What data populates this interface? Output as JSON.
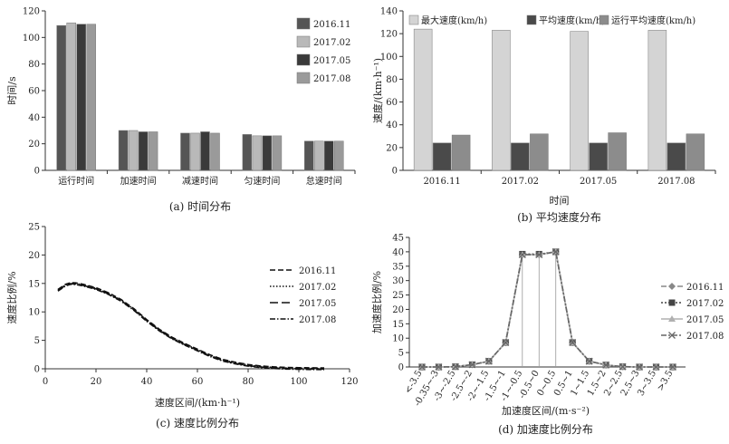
{
  "chart_data": [
    {
      "id": "a",
      "type": "bar",
      "caption": "(a) 时间分布",
      "ylabel": "时间/s",
      "xlabel": "",
      "ylim": [
        0,
        120
      ],
      "yticks": [
        0,
        20,
        40,
        60,
        80,
        100,
        120
      ],
      "categories": [
        "运行时间",
        "加速时间",
        "减速时间",
        "匀速时间",
        "怠速时间"
      ],
      "series": [
        {
          "name": "2016.11",
          "values": [
            109,
            30,
            28,
            27,
            22
          ],
          "color": "#555555"
        },
        {
          "name": "2017.02",
          "values": [
            111,
            30,
            28,
            26,
            22
          ],
          "color": "#b9b9b9"
        },
        {
          "name": "2017.05",
          "values": [
            110,
            29,
            29,
            26,
            22
          ],
          "color": "#3a3a3a"
        },
        {
          "name": "2017.08",
          "values": [
            110,
            29,
            28,
            26,
            22
          ],
          "color": "#9a9a9a"
        }
      ]
    },
    {
      "id": "b",
      "type": "bar",
      "caption": "(b) 平均速度分布",
      "ylabel": "速度/(km·h⁻¹)",
      "xlabel": "时间",
      "ylim": [
        0,
        140
      ],
      "yticks": [
        0,
        20,
        40,
        60,
        80,
        100,
        120,
        140
      ],
      "categories": [
        "2016.11",
        "2017.02",
        "2017.05",
        "2017.08"
      ],
      "series": [
        {
          "name": "最大速度(km/h)",
          "values": [
            124,
            123,
            122,
            123
          ],
          "color": "#d4d4d4"
        },
        {
          "name": "平均速度(km/h)",
          "values": [
            24,
            24,
            24,
            24
          ],
          "color": "#4a4a4a"
        },
        {
          "name": "运行平均速度(km/h)",
          "values": [
            31,
            32,
            33,
            32
          ],
          "color": "#8c8c8c"
        }
      ]
    },
    {
      "id": "c",
      "type": "line",
      "caption": "(c) 速度比例分布",
      "ylabel": "速度比例/%",
      "xlabel": "速度区间/(km·h⁻¹)",
      "xlim": [
        0,
        120
      ],
      "ylim": [
        0,
        25
      ],
      "xticks": [
        0,
        20,
        40,
        60,
        80,
        100,
        120
      ],
      "yticks": [
        0,
        5,
        10,
        15,
        20,
        25
      ],
      "x": [
        5,
        8,
        10,
        12,
        15,
        20,
        25,
        30,
        35,
        40,
        45,
        50,
        55,
        60,
        65,
        70,
        75,
        80,
        85,
        90,
        95,
        100,
        105,
        110
      ],
      "series": [
        {
          "name": "2016.11",
          "dash": "6,3",
          "values": [
            13.8,
            14.7,
            15.0,
            14.95,
            14.7,
            14.1,
            13.2,
            12.0,
            10.4,
            8.5,
            6.8,
            5.4,
            4.3,
            3.3,
            2.3,
            1.5,
            1.0,
            0.6,
            0.35,
            0.2,
            0.1,
            0.05,
            0.02,
            0.0
          ]
        },
        {
          "name": "2017.02",
          "dash": "1.5,2",
          "values": [
            13.8,
            14.7,
            15.0,
            14.95,
            14.7,
            14.1,
            13.2,
            12.0,
            10.4,
            8.5,
            6.8,
            5.4,
            4.3,
            3.3,
            2.3,
            1.5,
            1.0,
            0.6,
            0.35,
            0.2,
            0.1,
            0.05,
            0.02,
            0.0
          ]
        },
        {
          "name": "2017.05",
          "dash": "9,4",
          "values": [
            13.8,
            14.7,
            15.0,
            14.95,
            14.7,
            14.1,
            13.2,
            12.0,
            10.4,
            8.5,
            6.8,
            5.4,
            4.3,
            3.3,
            2.3,
            1.5,
            1.0,
            0.6,
            0.35,
            0.2,
            0.1,
            0.05,
            0.02,
            0.0
          ]
        },
        {
          "name": "2017.08",
          "dash": "6,2,1.5,2",
          "values": [
            13.8,
            14.7,
            15.0,
            14.95,
            14.7,
            14.1,
            13.2,
            12.0,
            10.4,
            8.5,
            6.8,
            5.4,
            4.3,
            3.3,
            2.3,
            1.5,
            1.0,
            0.6,
            0.35,
            0.2,
            0.1,
            0.05,
            0.02,
            0.0
          ]
        }
      ]
    },
    {
      "id": "d",
      "type": "line",
      "caption": "(d) 加速度比例分布",
      "ylabel": "加速度比例/%",
      "xlabel": "加速度区间/(m·s⁻²)",
      "ylim": [
        0,
        45
      ],
      "yticks": [
        0,
        5,
        10,
        15,
        20,
        25,
        30,
        35,
        40,
        45
      ],
      "categories": [
        "<-3.5",
        "-0.35~-3",
        "-3~-2.5",
        "-2.5~-2",
        "-2~-1.5",
        "-1.5~-1",
        "-1~-0.5",
        "-0.5~0",
        "0~0.5",
        "0.5~1",
        "1~1.5",
        "1.5~2",
        "2~2.5",
        "2.5~3",
        "3~3.5",
        ">3.5"
      ],
      "series": [
        {
          "name": "2016.11",
          "marker": "diamond",
          "color": "#888888",
          "values": [
            0,
            0,
            0.1,
            0.8,
            2.0,
            8.5,
            39.0,
            39.0,
            40.0,
            8.5,
            2.0,
            0.7,
            0.1,
            0,
            0,
            0
          ]
        },
        {
          "name": "2017.02",
          "marker": "square",
          "color": "#444444",
          "values": [
            0,
            0,
            0.1,
            0.8,
            2.0,
            8.5,
            39.2,
            39.2,
            40.0,
            8.5,
            2.0,
            0.7,
            0.1,
            0,
            0,
            0
          ]
        },
        {
          "name": "2017.05",
          "marker": "triangle",
          "color": "#b0b0b0",
          "values": [
            0,
            0,
            0.1,
            0.8,
            2.0,
            8.5,
            39.0,
            39.0,
            40.0,
            8.5,
            2.0,
            0.7,
            0.1,
            0,
            0,
            0
          ]
        },
        {
          "name": "2017.08",
          "marker": "x",
          "color": "#666666",
          "values": [
            0,
            0,
            0.1,
            0.8,
            2.0,
            8.5,
            39.0,
            39.0,
            40.0,
            8.5,
            2.0,
            0.7,
            0.1,
            0,
            0,
            0
          ]
        }
      ]
    }
  ]
}
